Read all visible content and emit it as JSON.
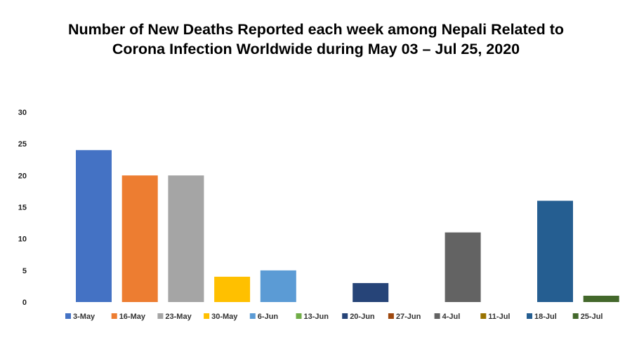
{
  "chart_data": {
    "type": "bar",
    "title_line1": "Number of New Deaths Reported each week among Nepali Related to",
    "title_line2": "Corona Infection Worldwide during May 03 – Jul 25, 2020",
    "ylim": [
      0,
      30
    ],
    "yticks": [
      0,
      5,
      10,
      15,
      20,
      25,
      30
    ],
    "grid": false,
    "legend_position": "bottom",
    "series": [
      {
        "name": "3-May",
        "value": 24,
        "color": "#4472C4"
      },
      {
        "name": "16-May",
        "value": 20,
        "color": "#ED7D31"
      },
      {
        "name": "23-May",
        "value": 20,
        "color": "#A5A5A5"
      },
      {
        "name": "30-May",
        "value": 4,
        "color": "#FFC000"
      },
      {
        "name": "6-Jun",
        "value": 5,
        "color": "#5B9BD5"
      },
      {
        "name": "13-Jun",
        "value": 0,
        "color": "#70AD47"
      },
      {
        "name": "20-Jun",
        "value": 3,
        "color": "#264478"
      },
      {
        "name": "27-Jun",
        "value": 0,
        "color": "#9E480E"
      },
      {
        "name": "4-Jul",
        "value": 11,
        "color": "#636363"
      },
      {
        "name": "11-Jul",
        "value": 0,
        "color": "#997300"
      },
      {
        "name": "18-Jul",
        "value": 16,
        "color": "#255E91"
      },
      {
        "name": "25-Jul",
        "value": 1,
        "color": "#43682B"
      }
    ]
  }
}
